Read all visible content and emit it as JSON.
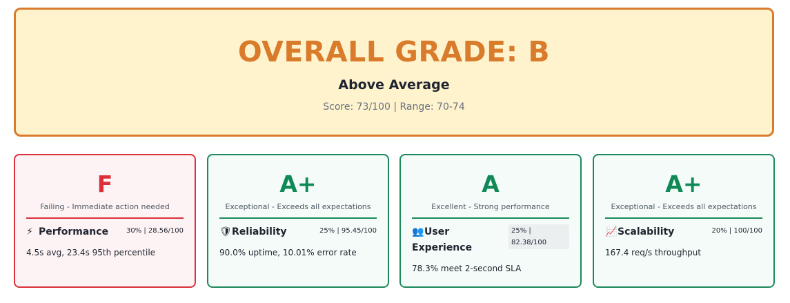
{
  "overall": {
    "title": "OVERALL GRADE: B",
    "subtitle": "Above Average",
    "score": "Score: 73/100 | Range: 70-74"
  },
  "colors": {
    "accent": "#d97b2b",
    "pass": "#0f8a57",
    "fail": "#dc2f3a"
  },
  "cards": [
    {
      "grade": "F",
      "description": "Failing - Immediate action needed",
      "icon": "lightning-icon",
      "icon_glyph": "⚡",
      "name": "Performance",
      "weight": "30% | 28.56/100",
      "detail": "4.5s avg, 23.4s 95th percentile"
    },
    {
      "grade": "A+",
      "description": "Exceptional - Exceeds all expectations",
      "icon": "shield-icon",
      "icon_glyph": "🛡",
      "name": "Reliability",
      "weight": "25% | 95.45/100",
      "detail": "90.0% uptime, 10.01% error rate"
    },
    {
      "grade": "A",
      "description": "Excellent - Strong performance",
      "icon": "users-icon",
      "icon_glyph": "👥",
      "name": "User Experience",
      "weight": "25% | 82.38/100",
      "detail": "78.3% meet 2-second SLA"
    },
    {
      "grade": "A+",
      "description": "Exceptional - Exceeds all expectations",
      "icon": "chart-up-icon",
      "icon_glyph": "📈",
      "name": "Scalability",
      "weight": "20% | 100/100",
      "detail": "167.4 req/s throughput"
    }
  ]
}
